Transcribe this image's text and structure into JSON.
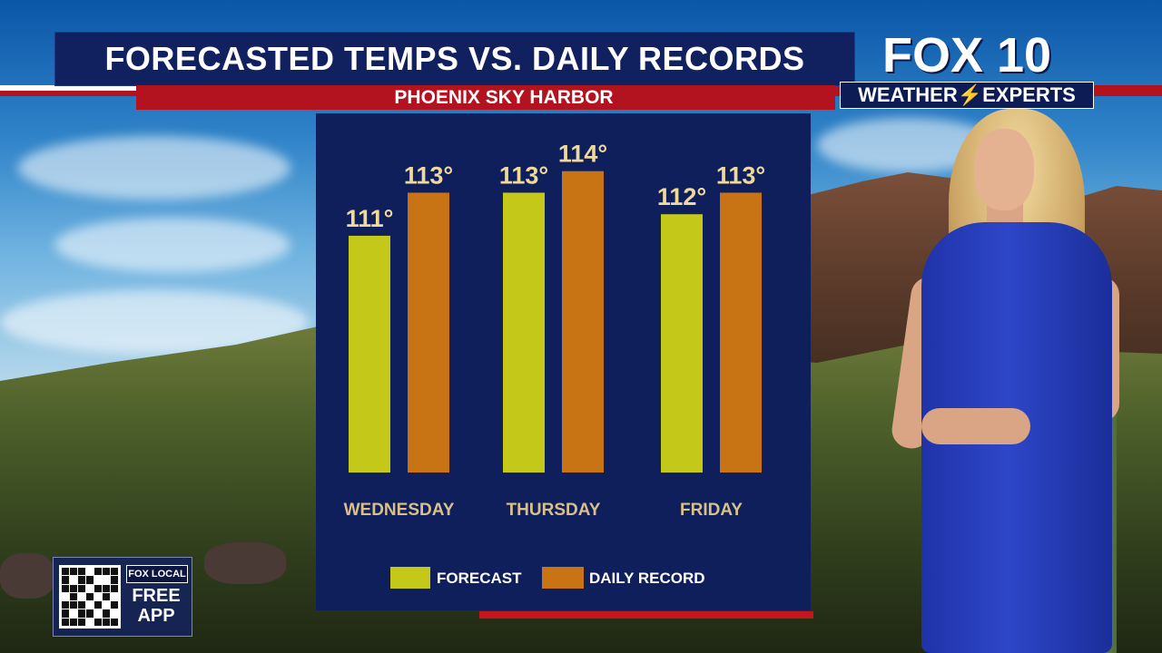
{
  "header": {
    "title": "FORECASTED TEMPS VS. DAILY RECORDS",
    "subtitle": "PHOENIX SKY HARBOR"
  },
  "logo": {
    "brand": "FOX 10",
    "tagline": "WEATHER⚡EXPERTS"
  },
  "app_badge": {
    "brand": "FOX LOCAL",
    "line1": "FREE",
    "line2": "APP"
  },
  "colors": {
    "forecast": "#c4c818",
    "record": "#c97414",
    "panel": "#0f1f5c",
    "value_text": "#f0d99a",
    "day_text": "#d9c08a",
    "legend_text": "#ffffff"
  },
  "chart_data": {
    "type": "bar",
    "categories": [
      "WEDNESDAY",
      "THURSDAY",
      "FRIDAY"
    ],
    "series": [
      {
        "name": "FORECAST",
        "values": [
          111,
          113,
          112
        ],
        "labels": [
          "111°",
          "113°",
          "112°"
        ]
      },
      {
        "name": "DAILY RECORD",
        "values": [
          113,
          114,
          113
        ],
        "labels": [
          "113°",
          "114°",
          "113°"
        ]
      }
    ],
    "ylim": [
      100,
      115
    ],
    "grid": false,
    "legend_position": "bottom"
  }
}
